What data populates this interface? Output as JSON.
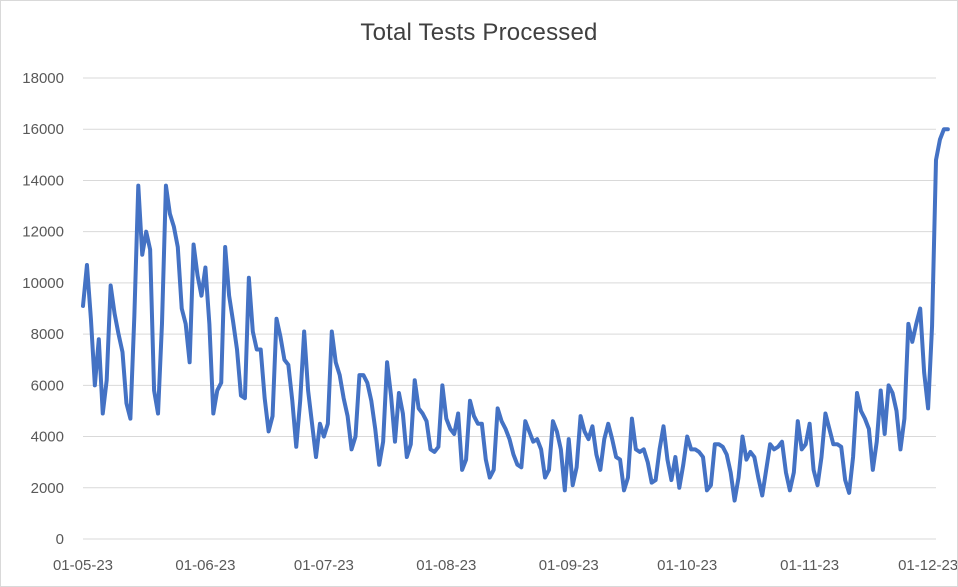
{
  "chart_data": {
    "type": "line",
    "title": "Total Tests Processed",
    "xlabel": "",
    "ylabel": "",
    "ylim": [
      0,
      18000
    ],
    "y_ticks": [
      0,
      2000,
      4000,
      6000,
      8000,
      10000,
      12000,
      14000,
      16000,
      18000
    ],
    "y_tick_labels": [
      "0",
      "2000",
      "4000",
      "6000",
      "8000",
      "10000",
      "12000",
      "14000",
      "16000",
      "18000"
    ],
    "x_range": [
      "2023-05-01",
      "2023-12-03"
    ],
    "x_ticks": [
      "2023-05-01",
      "2023-06-01",
      "2023-07-01",
      "2023-08-01",
      "2023-09-01",
      "2023-10-01",
      "2023-11-01",
      "2023-12-01"
    ],
    "x_tick_labels": [
      "01-05-23",
      "01-06-23",
      "01-07-23",
      "01-08-23",
      "01-09-23",
      "01-10-23",
      "01-11-23",
      "01-12-23"
    ],
    "grid": true,
    "legend": "none",
    "series": [
      {
        "color": "#4472c4",
        "points": [
          [
            "2023-05-01",
            9100
          ],
          [
            "2023-05-02",
            10700
          ],
          [
            "2023-05-03",
            8600
          ],
          [
            "2023-05-04",
            6000
          ],
          [
            "2023-05-05",
            7800
          ],
          [
            "2023-05-06",
            4900
          ],
          [
            "2023-05-07",
            6200
          ],
          [
            "2023-05-08",
            9900
          ],
          [
            "2023-05-09",
            8800
          ],
          [
            "2023-05-10",
            8000
          ],
          [
            "2023-05-11",
            7300
          ],
          [
            "2023-05-12",
            5300
          ],
          [
            "2023-05-13",
            4700
          ],
          [
            "2023-05-14",
            8700
          ],
          [
            "2023-05-15",
            13800
          ],
          [
            "2023-05-16",
            11100
          ],
          [
            "2023-05-17",
            12000
          ],
          [
            "2023-05-18",
            11300
          ],
          [
            "2023-05-19",
            5800
          ],
          [
            "2023-05-20",
            4900
          ],
          [
            "2023-05-21",
            8400
          ],
          [
            "2023-05-22",
            13800
          ],
          [
            "2023-05-23",
            12700
          ],
          [
            "2023-05-24",
            12200
          ],
          [
            "2023-05-25",
            11400
          ],
          [
            "2023-05-26",
            9000
          ],
          [
            "2023-05-27",
            8400
          ],
          [
            "2023-05-28",
            6900
          ],
          [
            "2023-05-29",
            11500
          ],
          [
            "2023-05-30",
            10300
          ],
          [
            "2023-05-31",
            9500
          ],
          [
            "2023-06-01",
            10600
          ],
          [
            "2023-06-02",
            8400
          ],
          [
            "2023-06-03",
            4900
          ],
          [
            "2023-06-04",
            5800
          ],
          [
            "2023-06-05",
            6100
          ],
          [
            "2023-06-06",
            11400
          ],
          [
            "2023-06-07",
            9500
          ],
          [
            "2023-06-08",
            8500
          ],
          [
            "2023-06-09",
            7400
          ],
          [
            "2023-06-10",
            5600
          ],
          [
            "2023-06-11",
            5500
          ],
          [
            "2023-06-12",
            10200
          ],
          [
            "2023-06-13",
            8100
          ],
          [
            "2023-06-14",
            7400
          ],
          [
            "2023-06-15",
            7400
          ],
          [
            "2023-06-16",
            5500
          ],
          [
            "2023-06-17",
            4200
          ],
          [
            "2023-06-18",
            4800
          ],
          [
            "2023-06-19",
            8600
          ],
          [
            "2023-06-20",
            7900
          ],
          [
            "2023-06-21",
            7000
          ],
          [
            "2023-06-22",
            6800
          ],
          [
            "2023-06-23",
            5400
          ],
          [
            "2023-06-24",
            3600
          ],
          [
            "2023-06-25",
            5400
          ],
          [
            "2023-06-26",
            8100
          ],
          [
            "2023-06-27",
            5800
          ],
          [
            "2023-06-28",
            4500
          ],
          [
            "2023-06-29",
            3200
          ],
          [
            "2023-06-30",
            4500
          ],
          [
            "2023-07-01",
            4000
          ],
          [
            "2023-07-02",
            4500
          ],
          [
            "2023-07-03",
            8100
          ],
          [
            "2023-07-04",
            6900
          ],
          [
            "2023-07-05",
            6400
          ],
          [
            "2023-07-06",
            5500
          ],
          [
            "2023-07-07",
            4800
          ],
          [
            "2023-07-08",
            3500
          ],
          [
            "2023-07-09",
            4000
          ],
          [
            "2023-07-10",
            6400
          ],
          [
            "2023-07-11",
            6400
          ],
          [
            "2023-07-12",
            6100
          ],
          [
            "2023-07-13",
            5400
          ],
          [
            "2023-07-14",
            4300
          ],
          [
            "2023-07-15",
            2900
          ],
          [
            "2023-07-16",
            3800
          ],
          [
            "2023-07-17",
            6900
          ],
          [
            "2023-07-18",
            5600
          ],
          [
            "2023-07-19",
            3800
          ],
          [
            "2023-07-20",
            5700
          ],
          [
            "2023-07-21",
            4900
          ],
          [
            "2023-07-22",
            3200
          ],
          [
            "2023-07-23",
            3700
          ],
          [
            "2023-07-24",
            6200
          ],
          [
            "2023-07-25",
            5100
          ],
          [
            "2023-07-26",
            4900
          ],
          [
            "2023-07-27",
            4600
          ],
          [
            "2023-07-28",
            3500
          ],
          [
            "2023-07-29",
            3400
          ],
          [
            "2023-07-30",
            3600
          ],
          [
            "2023-07-31",
            6000
          ],
          [
            "2023-08-01",
            4700
          ],
          [
            "2023-08-02",
            4300
          ],
          [
            "2023-08-03",
            4100
          ],
          [
            "2023-08-04",
            4900
          ],
          [
            "2023-08-05",
            2700
          ],
          [
            "2023-08-06",
            3100
          ],
          [
            "2023-08-07",
            5400
          ],
          [
            "2023-08-08",
            4800
          ],
          [
            "2023-08-09",
            4500
          ],
          [
            "2023-08-10",
            4500
          ],
          [
            "2023-08-11",
            3100
          ],
          [
            "2023-08-12",
            2400
          ],
          [
            "2023-08-13",
            2700
          ],
          [
            "2023-08-14",
            5100
          ],
          [
            "2023-08-15",
            4600
          ],
          [
            "2023-08-16",
            4300
          ],
          [
            "2023-08-17",
            3900
          ],
          [
            "2023-08-18",
            3300
          ],
          [
            "2023-08-19",
            2900
          ],
          [
            "2023-08-20",
            2800
          ],
          [
            "2023-08-21",
            4600
          ],
          [
            "2023-08-22",
            4200
          ],
          [
            "2023-08-23",
            3800
          ],
          [
            "2023-08-24",
            3900
          ],
          [
            "2023-08-25",
            3500
          ],
          [
            "2023-08-26",
            2400
          ],
          [
            "2023-08-27",
            2700
          ],
          [
            "2023-08-28",
            4600
          ],
          [
            "2023-08-29",
            4200
          ],
          [
            "2023-08-30",
            3500
          ],
          [
            "2023-08-31",
            1900
          ],
          [
            "2023-09-01",
            3900
          ],
          [
            "2023-09-02",
            2100
          ],
          [
            "2023-09-03",
            2800
          ],
          [
            "2023-09-04",
            4800
          ],
          [
            "2023-09-05",
            4200
          ],
          [
            "2023-09-06",
            3900
          ],
          [
            "2023-09-07",
            4400
          ],
          [
            "2023-09-08",
            3300
          ],
          [
            "2023-09-09",
            2700
          ],
          [
            "2023-09-10",
            3900
          ],
          [
            "2023-09-11",
            4500
          ],
          [
            "2023-09-12",
            3900
          ],
          [
            "2023-09-13",
            3200
          ],
          [
            "2023-09-14",
            3100
          ],
          [
            "2023-09-15",
            1900
          ],
          [
            "2023-09-16",
            2400
          ],
          [
            "2023-09-17",
            4700
          ],
          [
            "2023-09-18",
            3500
          ],
          [
            "2023-09-19",
            3400
          ],
          [
            "2023-09-20",
            3500
          ],
          [
            "2023-09-21",
            3000
          ],
          [
            "2023-09-22",
            2200
          ],
          [
            "2023-09-23",
            2300
          ],
          [
            "2023-09-24",
            3500
          ],
          [
            "2023-09-25",
            4400
          ],
          [
            "2023-09-26",
            3100
          ],
          [
            "2023-09-27",
            2300
          ],
          [
            "2023-09-28",
            3200
          ],
          [
            "2023-09-29",
            2000
          ],
          [
            "2023-09-30",
            2900
          ],
          [
            "2023-10-01",
            4000
          ],
          [
            "2023-10-02",
            3500
          ],
          [
            "2023-10-03",
            3500
          ],
          [
            "2023-10-04",
            3400
          ],
          [
            "2023-10-05",
            3200
          ],
          [
            "2023-10-06",
            1900
          ],
          [
            "2023-10-07",
            2100
          ],
          [
            "2023-10-08",
            3700
          ],
          [
            "2023-10-09",
            3700
          ],
          [
            "2023-10-10",
            3600
          ],
          [
            "2023-10-11",
            3300
          ],
          [
            "2023-10-12",
            2600
          ],
          [
            "2023-10-13",
            1500
          ],
          [
            "2023-10-14",
            2400
          ],
          [
            "2023-10-15",
            4000
          ],
          [
            "2023-10-16",
            3100
          ],
          [
            "2023-10-17",
            3400
          ],
          [
            "2023-10-18",
            3200
          ],
          [
            "2023-10-19",
            2400
          ],
          [
            "2023-10-20",
            1700
          ],
          [
            "2023-10-21",
            2700
          ],
          [
            "2023-10-22",
            3700
          ],
          [
            "2023-10-23",
            3500
          ],
          [
            "2023-10-24",
            3600
          ],
          [
            "2023-10-25",
            3800
          ],
          [
            "2023-10-26",
            2600
          ],
          [
            "2023-10-27",
            1900
          ],
          [
            "2023-10-28",
            2600
          ],
          [
            "2023-10-29",
            4600
          ],
          [
            "2023-10-30",
            3500
          ],
          [
            "2023-10-31",
            3700
          ],
          [
            "2023-11-01",
            4500
          ],
          [
            "2023-11-02",
            2700
          ],
          [
            "2023-11-03",
            2100
          ],
          [
            "2023-11-04",
            3200
          ],
          [
            "2023-11-05",
            4900
          ],
          [
            "2023-11-06",
            4300
          ],
          [
            "2023-11-07",
            3700
          ],
          [
            "2023-11-08",
            3700
          ],
          [
            "2023-11-09",
            3600
          ],
          [
            "2023-11-10",
            2300
          ],
          [
            "2023-11-11",
            1800
          ],
          [
            "2023-11-12",
            3200
          ],
          [
            "2023-11-13",
            5700
          ],
          [
            "2023-11-14",
            5000
          ],
          [
            "2023-11-15",
            4700
          ],
          [
            "2023-11-16",
            4300
          ],
          [
            "2023-11-17",
            2700
          ],
          [
            "2023-11-18",
            3800
          ],
          [
            "2023-11-19",
            5800
          ],
          [
            "2023-11-20",
            4100
          ],
          [
            "2023-11-21",
            6000
          ],
          [
            "2023-11-22",
            5700
          ],
          [
            "2023-11-23",
            5000
          ],
          [
            "2023-11-24",
            3500
          ],
          [
            "2023-11-25",
            4700
          ],
          [
            "2023-11-26",
            8400
          ],
          [
            "2023-11-27",
            7700
          ],
          [
            "2023-11-28",
            8400
          ],
          [
            "2023-11-29",
            9000
          ],
          [
            "2023-11-30",
            6500
          ],
          [
            "2023-12-01",
            5100
          ],
          [
            "2023-12-02",
            8300
          ],
          [
            "2023-12-03",
            14800
          ],
          [
            "2023-12-04",
            15600
          ],
          [
            "2023-12-05",
            16000
          ],
          [
            "2023-12-06",
            16000
          ]
        ]
      }
    ]
  }
}
